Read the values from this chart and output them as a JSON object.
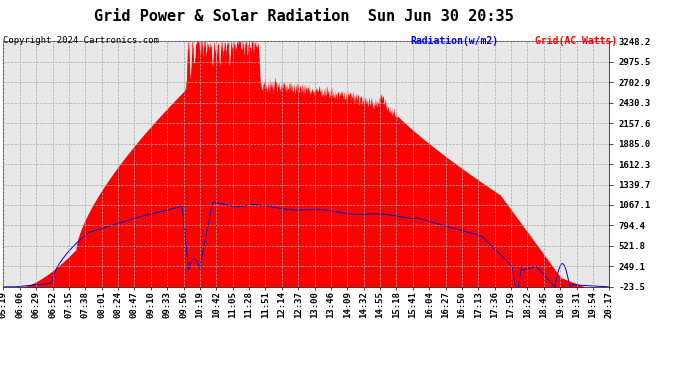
{
  "title": "Grid Power & Solar Radiation  Sun Jun 30 20:35",
  "copyright": "Copyright 2024 Cartronics.com",
  "legend_radiation": "Radiation(w/m2)",
  "legend_grid": "Grid(AC Watts)",
  "yticks": [
    3248.2,
    2975.5,
    2702.9,
    2430.3,
    2157.6,
    1885.0,
    1612.3,
    1339.7,
    1067.1,
    794.4,
    521.8,
    249.1,
    -23.5
  ],
  "ymin": -23.5,
  "ymax": 3248.2,
  "background_color": "#ffffff",
  "plot_bg_color": "#e8e8e8",
  "grid_color": "#aaaaaa",
  "radiation_color": "#ff0000",
  "grid_line_color": "#0000cc",
  "xtick_labels": [
    "05:19",
    "06:06",
    "06:29",
    "06:52",
    "07:15",
    "07:38",
    "08:01",
    "08:24",
    "08:47",
    "09:10",
    "09:33",
    "09:56",
    "10:19",
    "10:42",
    "11:05",
    "11:28",
    "11:51",
    "12:14",
    "12:37",
    "13:00",
    "13:46",
    "14:09",
    "14:32",
    "14:55",
    "15:18",
    "15:41",
    "16:04",
    "16:27",
    "16:50",
    "17:13",
    "17:36",
    "17:59",
    "18:22",
    "18:45",
    "19:08",
    "19:31",
    "19:54",
    "20:17"
  ],
  "title_fontsize": 11,
  "tick_fontsize": 6.5,
  "copyright_fontsize": 6.5
}
